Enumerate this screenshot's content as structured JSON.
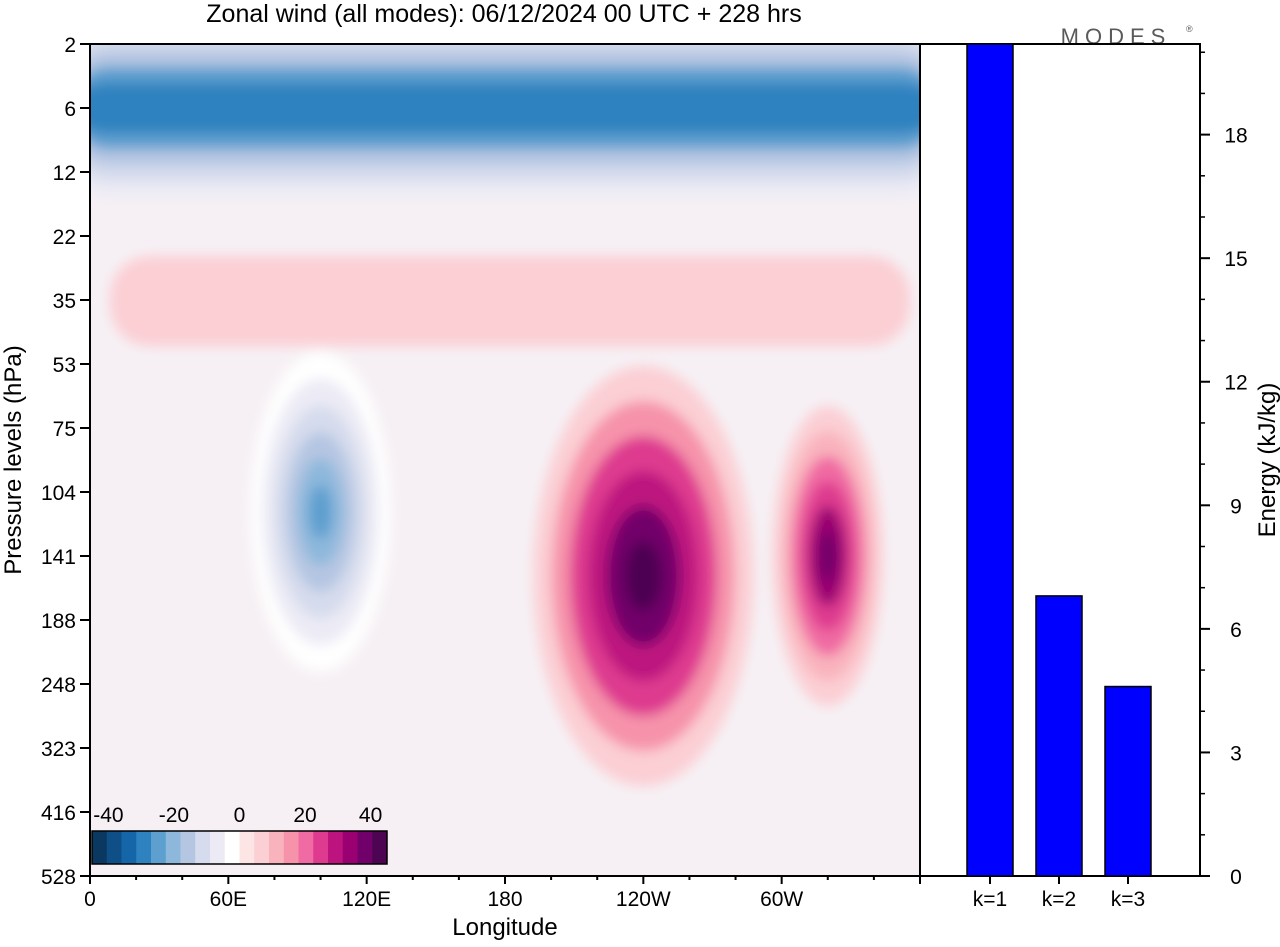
{
  "title": "Zonal wind (all modes):  06/12/2024  00 UTC  + 228 hrs",
  "brand": "MODES",
  "brand_mark": "®",
  "chart_data": [
    {
      "type": "heatmap",
      "title": "Zonal wind (all modes):  06/12/2024  00 UTC  + 228 hrs",
      "xlabel": "Longitude",
      "ylabel": "Pressure levels (hPa)",
      "x_tick_labels": [
        "0",
        "60E",
        "120E",
        "180",
        "120W",
        "60W"
      ],
      "x_range_deg_east": [
        0,
        360
      ],
      "y_tick_labels": [
        "2",
        "6",
        "12",
        "22",
        "35",
        "53",
        "75",
        "104",
        "141",
        "188",
        "248",
        "323",
        "416",
        "528"
      ],
      "colorbar": {
        "tick_labels": [
          "-40",
          "-20",
          "0",
          "20",
          "40"
        ],
        "range": [
          -45,
          45
        ],
        "colors": [
          "#0b3860",
          "#0d4f86",
          "#1566a8",
          "#2e82bf",
          "#5d9fcf",
          "#8db8dc",
          "#b5c6e2",
          "#d6dced",
          "#ecebf5",
          "#ffffff",
          "#fde5e6",
          "#fbcfd4",
          "#f9b3bd",
          "#f693ab",
          "#f06aa3",
          "#de3a8f",
          "#bd137f",
          "#9a0072",
          "#72006a",
          "#4d0452"
        ]
      },
      "features": [
        {
          "name": "stratospheric easterly jet",
          "level_hPa": 6,
          "value_ms": -30
        },
        {
          "name": "central Pacific westerly maximum",
          "lon": "120W",
          "level_hPa": 141,
          "value_ms": 45
        },
        {
          "name": "eastern westerly maximum",
          "lon": "40W",
          "level_hPa": 141,
          "value_ms": 38
        },
        {
          "name": "tropical easterly maximum",
          "lon": "100E",
          "level_hPa": 104,
          "value_ms": -27
        }
      ]
    },
    {
      "type": "bar",
      "categories": [
        "k=1",
        "k=2",
        "k=3"
      ],
      "values": [
        20.2,
        6.8,
        4.6
      ],
      "ylabel": "Energy (kJ/kg)",
      "y_tick_labels": [
        "0",
        "3",
        "6",
        "9",
        "12",
        "15",
        "18"
      ],
      "ylim": [
        0,
        20.2
      ],
      "bar_color": "#0000ff"
    }
  ]
}
